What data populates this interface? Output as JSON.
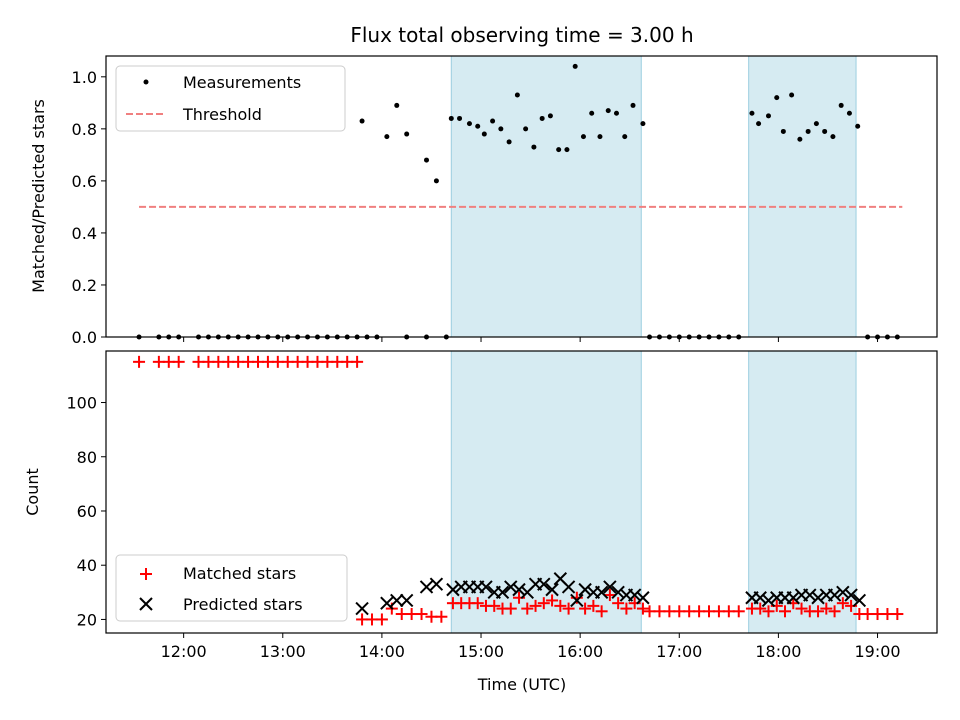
{
  "chart_data": [
    {
      "type": "scatter",
      "title": "Flux total observing time = 3.00 h",
      "ylabel": "Matched/Predicted stars",
      "xlabel": "",
      "xlim": [
        "11:13",
        "19:36"
      ],
      "ylim": [
        0,
        1.08
      ],
      "yticks": [
        "0.0",
        "0.2",
        "0.4",
        "0.6",
        "0.8",
        "1.0"
      ],
      "x_tick_labels": [],
      "shaded_intervals": [
        [
          "14:42",
          "16:37"
        ],
        [
          "17:42",
          "18:47"
        ]
      ],
      "series": [
        {
          "name": "Measurements",
          "marker": "dot",
          "color": "#000000",
          "points": [
            [
              "11:33",
              0.0
            ],
            [
              "11:45",
              0.0
            ],
            [
              "11:51",
              0.0
            ],
            [
              "11:57",
              0.0
            ],
            [
              "12:09",
              0.0
            ],
            [
              "12:15",
              0.0
            ],
            [
              "12:21",
              0.0
            ],
            [
              "12:27",
              0.0
            ],
            [
              "12:33",
              0.0
            ],
            [
              "12:39",
              0.0
            ],
            [
              "12:45",
              0.0
            ],
            [
              "12:51",
              0.0
            ],
            [
              "12:57",
              0.0
            ],
            [
              "13:03",
              0.0
            ],
            [
              "13:09",
              0.0
            ],
            [
              "13:15",
              0.0
            ],
            [
              "13:21",
              0.0
            ],
            [
              "13:27",
              0.0
            ],
            [
              "13:33",
              0.0
            ],
            [
              "13:39",
              0.0
            ],
            [
              "13:45",
              0.0
            ],
            [
              "13:51",
              0.0
            ],
            [
              "13:57",
              0.0
            ],
            [
              "14:15",
              0.0
            ],
            [
              "14:27",
              0.0
            ],
            [
              "14:39",
              0.0
            ],
            [
              "13:48",
              0.83
            ],
            [
              "14:03",
              0.77
            ],
            [
              "14:09",
              0.89
            ],
            [
              "14:15",
              0.78
            ],
            [
              "14:27",
              0.68
            ],
            [
              "14:33",
              0.6
            ],
            [
              "14:42",
              0.84
            ],
            [
              "14:47",
              0.84
            ],
            [
              "14:53",
              0.82
            ],
            [
              "14:58",
              0.81
            ],
            [
              "15:02",
              0.78
            ],
            [
              "15:07",
              0.83
            ],
            [
              "15:12",
              0.8
            ],
            [
              "15:17",
              0.75
            ],
            [
              "15:22",
              0.93
            ],
            [
              "15:27",
              0.8
            ],
            [
              "15:32",
              0.73
            ],
            [
              "15:37",
              0.84
            ],
            [
              "15:42",
              0.85
            ],
            [
              "15:47",
              0.72
            ],
            [
              "15:52",
              0.72
            ],
            [
              "15:57",
              1.04
            ],
            [
              "16:02",
              0.77
            ],
            [
              "16:07",
              0.86
            ],
            [
              "16:12",
              0.77
            ],
            [
              "16:17",
              0.87
            ],
            [
              "16:22",
              0.86
            ],
            [
              "16:27",
              0.77
            ],
            [
              "16:32",
              0.89
            ],
            [
              "16:38",
              0.82
            ],
            [
              "16:42",
              0.0
            ],
            [
              "16:48",
              0.0
            ],
            [
              "16:54",
              0.0
            ],
            [
              "17:00",
              0.0
            ],
            [
              "17:06",
              0.0
            ],
            [
              "17:12",
              0.0
            ],
            [
              "17:18",
              0.0
            ],
            [
              "17:24",
              0.0
            ],
            [
              "17:30",
              0.0
            ],
            [
              "17:36",
              0.0
            ],
            [
              "17:44",
              0.86
            ],
            [
              "17:48",
              0.82
            ],
            [
              "17:54",
              0.85
            ],
            [
              "17:59",
              0.92
            ],
            [
              "18:03",
              0.79
            ],
            [
              "18:08",
              0.93
            ],
            [
              "18:13",
              0.76
            ],
            [
              "18:18",
              0.79
            ],
            [
              "18:23",
              0.82
            ],
            [
              "18:28",
              0.79
            ],
            [
              "18:33",
              0.77
            ],
            [
              "18:38",
              0.89
            ],
            [
              "18:43",
              0.86
            ],
            [
              "18:48",
              0.81
            ],
            [
              "18:54",
              0.0
            ],
            [
              "19:00",
              0.0
            ],
            [
              "19:06",
              0.0
            ],
            [
              "19:12",
              0.0
            ]
          ]
        },
        {
          "name": "Threshold",
          "marker": "dashed-line",
          "color": "#f08080",
          "points": [
            [
              "11:33",
              0.5
            ],
            [
              "19:15",
              0.5
            ]
          ]
        }
      ]
    },
    {
      "type": "scatter",
      "title": "",
      "ylabel": "Count",
      "xlabel": "Time (UTC)",
      "xlim": [
        "11:13",
        "19:36"
      ],
      "ylim": [
        15,
        119
      ],
      "yticks": [
        "20",
        "40",
        "60",
        "80",
        "100"
      ],
      "x_tick_labels": [
        "12:00",
        "13:00",
        "14:00",
        "15:00",
        "16:00",
        "17:00",
        "18:00",
        "19:00"
      ],
      "shaded_intervals": [
        [
          "14:42",
          "16:37"
        ],
        [
          "17:42",
          "18:47"
        ]
      ],
      "series": [
        {
          "name": "Matched stars",
          "marker": "plus",
          "color": "#ff0000",
          "points": [
            [
              "11:33",
              115
            ],
            [
              "11:45",
              115
            ],
            [
              "11:51",
              115
            ],
            [
              "11:57",
              115
            ],
            [
              "12:09",
              115
            ],
            [
              "12:15",
              115
            ],
            [
              "12:21",
              115
            ],
            [
              "12:27",
              115
            ],
            [
              "12:33",
              115
            ],
            [
              "12:39",
              115
            ],
            [
              "12:45",
              115
            ],
            [
              "12:51",
              115
            ],
            [
              "12:57",
              115
            ],
            [
              "13:03",
              115
            ],
            [
              "13:09",
              115
            ],
            [
              "13:15",
              115
            ],
            [
              "13:21",
              115
            ],
            [
              "13:27",
              115
            ],
            [
              "13:33",
              115
            ],
            [
              "13:39",
              115
            ],
            [
              "13:45",
              115
            ],
            [
              "13:48",
              20
            ],
            [
              "13:54",
              20
            ],
            [
              "14:00",
              20
            ],
            [
              "14:06",
              24
            ],
            [
              "14:12",
              22
            ],
            [
              "14:18",
              22
            ],
            [
              "14:24",
              22
            ],
            [
              "14:30",
              21
            ],
            [
              "14:36",
              21
            ],
            [
              "14:43",
              26
            ],
            [
              "14:48",
              26
            ],
            [
              "14:53",
              26
            ],
            [
              "14:58",
              26
            ],
            [
              "15:03",
              25
            ],
            [
              "15:08",
              25
            ],
            [
              "15:13",
              24
            ],
            [
              "15:18",
              24
            ],
            [
              "15:23",
              28
            ],
            [
              "15:28",
              24
            ],
            [
              "15:33",
              25
            ],
            [
              "15:38",
              26
            ],
            [
              "15:43",
              27
            ],
            [
              "15:48",
              25
            ],
            [
              "15:53",
              24
            ],
            [
              "15:58",
              28
            ],
            [
              "16:03",
              24
            ],
            [
              "16:08",
              25
            ],
            [
              "16:13",
              23
            ],
            [
              "16:18",
              29
            ],
            [
              "16:23",
              26
            ],
            [
              "16:28",
              24
            ],
            [
              "16:33",
              26
            ],
            [
              "16:38",
              24
            ],
            [
              "16:42",
              23
            ],
            [
              "16:48",
              23
            ],
            [
              "16:54",
              23
            ],
            [
              "17:00",
              23
            ],
            [
              "17:06",
              23
            ],
            [
              "17:12",
              23
            ],
            [
              "17:18",
              23
            ],
            [
              "17:24",
              23
            ],
            [
              "17:30",
              23
            ],
            [
              "17:36",
              23
            ],
            [
              "17:44",
              24
            ],
            [
              "17:49",
              24
            ],
            [
              "17:54",
              23
            ],
            [
              "17:59",
              25
            ],
            [
              "18:04",
              23
            ],
            [
              "18:09",
              26
            ],
            [
              "18:14",
              24
            ],
            [
              "18:19",
              23
            ],
            [
              "18:24",
              23
            ],
            [
              "18:29",
              24
            ],
            [
              "18:34",
              23
            ],
            [
              "18:39",
              26
            ],
            [
              "18:44",
              25
            ],
            [
              "18:49",
              22
            ],
            [
              "18:54",
              22
            ],
            [
              "19:00",
              22
            ],
            [
              "19:06",
              22
            ],
            [
              "19:12",
              22
            ]
          ]
        },
        {
          "name": "Predicted stars",
          "marker": "x",
          "color": "#000000",
          "points": [
            [
              "13:48",
              24
            ],
            [
              "14:03",
              26
            ],
            [
              "14:09",
              27
            ],
            [
              "14:15",
              27
            ],
            [
              "14:27",
              32
            ],
            [
              "14:33",
              33
            ],
            [
              "14:43",
              31
            ],
            [
              "14:48",
              32
            ],
            [
              "14:53",
              32
            ],
            [
              "14:58",
              32
            ],
            [
              "15:03",
              32
            ],
            [
              "15:08",
              30
            ],
            [
              "15:13",
              30
            ],
            [
              "15:18",
              32
            ],
            [
              "15:23",
              31
            ],
            [
              "15:28",
              30
            ],
            [
              "15:33",
              33
            ],
            [
              "15:38",
              33
            ],
            [
              "15:43",
              31
            ],
            [
              "15:48",
              35
            ],
            [
              "15:53",
              32
            ],
            [
              "15:58",
              27
            ],
            [
              "16:03",
              31
            ],
            [
              "16:08",
              30
            ],
            [
              "16:13",
              30
            ],
            [
              "16:18",
              32
            ],
            [
              "16:23",
              30
            ],
            [
              "16:28",
              29
            ],
            [
              "16:33",
              29
            ],
            [
              "16:38",
              28
            ],
            [
              "17:44",
              28
            ],
            [
              "17:49",
              28
            ],
            [
              "17:54",
              27
            ],
            [
              "17:59",
              28
            ],
            [
              "18:04",
              28
            ],
            [
              "18:09",
              28
            ],
            [
              "18:14",
              29
            ],
            [
              "18:19",
              29
            ],
            [
              "18:24",
              28
            ],
            [
              "18:29",
              29
            ],
            [
              "18:34",
              29
            ],
            [
              "18:39",
              30
            ],
            [
              "18:44",
              29
            ],
            [
              "18:49",
              27
            ]
          ]
        }
      ]
    }
  ],
  "colors": {
    "shade_fill": "#add8e6",
    "shade_opacity": 0.5
  }
}
